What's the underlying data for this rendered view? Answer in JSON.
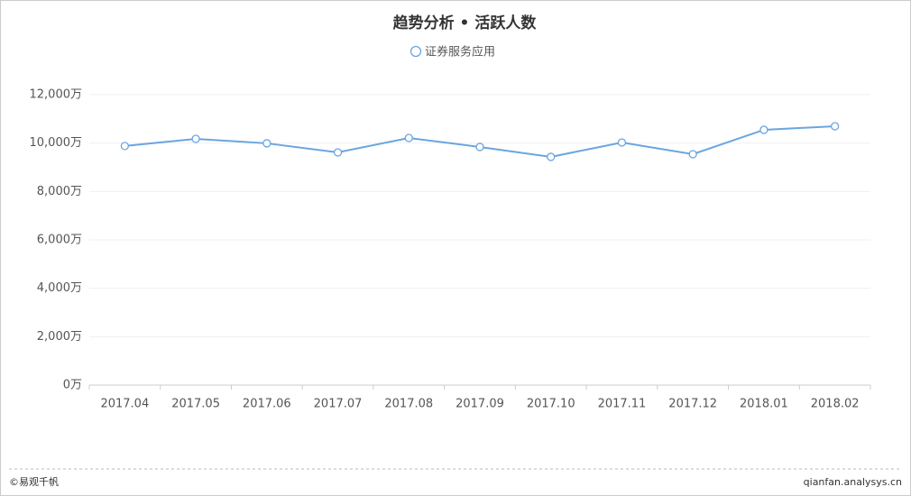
{
  "chart_data": {
    "type": "line",
    "title": "趋势分析 • 活跃人数",
    "categories": [
      "2017.04",
      "2017.05",
      "2017.06",
      "2017.07",
      "2017.08",
      "2017.09",
      "2017.10",
      "2017.11",
      "2017.12",
      "2018.01",
      "2018.02"
    ],
    "series": [
      {
        "name": "证券服务应用",
        "color": "#6aa5e0",
        "values": [
          9880,
          10175,
          9990,
          9616,
          10212,
          9840,
          9430,
          10026,
          9541,
          10548,
          10697
        ]
      }
    ],
    "ylim": [
      0,
      12000
    ],
    "yticks": [
      {
        "value": 0,
        "label": "0万"
      },
      {
        "value": 2000,
        "label": "2,000万"
      },
      {
        "value": 4000,
        "label": "4,000万"
      },
      {
        "value": 6000,
        "label": "6,000万"
      },
      {
        "value": 8000,
        "label": "8,000万"
      },
      {
        "value": 10000,
        "label": "10,000万"
      },
      {
        "value": 12000,
        "label": "12,000万"
      }
    ],
    "grid": true,
    "legend": "top"
  },
  "footer": {
    "left": "©易观千帆",
    "right": "qianfan.analysys.cn"
  }
}
